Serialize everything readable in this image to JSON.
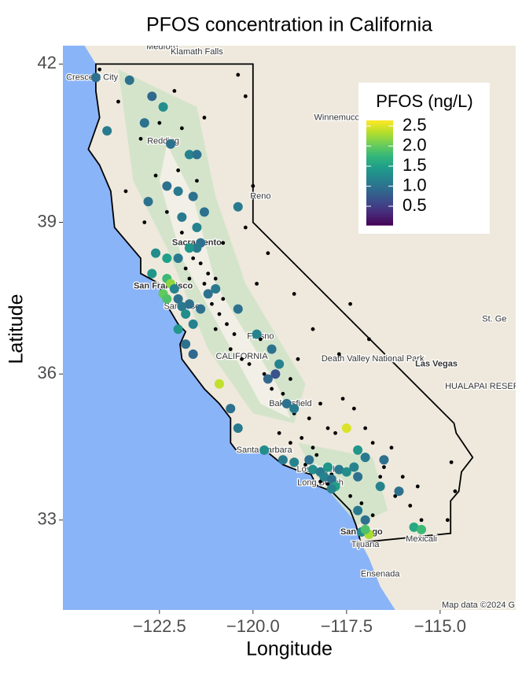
{
  "chart_data": {
    "type": "scatter_map",
    "title": "PFOS concentration in California",
    "x_label": "Longitude",
    "y_label": "Latitude",
    "projection": "mercator",
    "xlim": [
      -125.08,
      -112.98
    ],
    "ylim": [
      31.1,
      42.34
    ],
    "xticks": [
      {
        "value": -122.5,
        "label": "−122.5"
      },
      {
        "value": -120,
        "label": "−120.0"
      },
      {
        "value": -117.5,
        "label": "−117.5"
      },
      {
        "value": -115,
        "label": "−115.0"
      }
    ],
    "yticks": [
      33,
      36,
      39,
      42
    ],
    "colorbar": {
      "title": "PFOS (ng/L)",
      "colormap": "viridis",
      "clim": [
        0.03,
        2.64
      ],
      "ticks": [
        0.5,
        {
          "value": 1,
          "label": "1.0"
        },
        1.5,
        {
          "value": 2,
          "label": "2.0"
        },
        2.5
      ]
    },
    "points": {
      "x": [
        -124.2,
        -123.9,
        -123.3,
        -122.7,
        -122.4,
        -122.2,
        -121.7,
        -121.5,
        -122.8,
        -122.3,
        -122.0,
        -121.9,
        -121.6,
        -121.3,
        -121.5,
        -121.4,
        -121.5,
        -121.7,
        -122.0,
        -122.3,
        -122.6,
        -122.7,
        -122.3,
        -122.2,
        -122.4,
        -122.3,
        -122.1,
        -122.0,
        -121.9,
        -121.7,
        -121.8,
        -121.6,
        -121.4,
        -121.2,
        -121.0,
        -122.0,
        -121.8,
        -121.6,
        -120.4,
        -119.9,
        -119.5,
        -119.3,
        -119.6,
        -119.1,
        -118.9,
        -120.6,
        -120.4,
        -119.7,
        -119.2,
        -118.9,
        -118.5,
        -118.4,
        -118.2,
        -118.1,
        -117.9,
        -118.0,
        -117.7,
        -117.5,
        -117.3,
        -117.2,
        -117.8,
        -117.9,
        -117.2,
        -117.0,
        -116.6,
        -117.5,
        -116.5,
        -117.2,
        -117.0,
        -117.1,
        -116.9,
        -117.0,
        -115.7,
        -115.5,
        -116.1,
        -120.9,
        -122.9,
        -120.4,
        -119.4
      ],
      "y": [
        41.75,
        40.75,
        41.7,
        41.4,
        41.2,
        40.5,
        40.3,
        40.3,
        39.4,
        39.7,
        39.6,
        39.1,
        39.5,
        39.2,
        38.9,
        38.6,
        38.5,
        38.5,
        38.3,
        38.3,
        38.4,
        38.0,
        37.9,
        37.8,
        37.6,
        37.5,
        37.7,
        37.5,
        37.35,
        37.4,
        37.2,
        37.0,
        37.3,
        37.6,
        37.7,
        36.9,
        36.6,
        36.4,
        37.3,
        36.8,
        36.5,
        36.2,
        35.9,
        35.4,
        35.3,
        35.3,
        34.9,
        34.45,
        34.25,
        34.2,
        34.25,
        34.05,
        34.0,
        33.9,
        33.85,
        34.1,
        34.05,
        34.0,
        34.1,
        33.9,
        33.7,
        33.65,
        34.45,
        34.3,
        33.7,
        34.9,
        34.25,
        33.2,
        33.0,
        32.75,
        32.7,
        32.8,
        32.85,
        32.8,
        33.6,
        35.8,
        40.9,
        39.3,
        36.0
      ],
      "values": [
        1.0,
        1.1,
        1.0,
        0.9,
        1.3,
        1.0,
        1.2,
        1.0,
        1.0,
        1.0,
        1.1,
        1.1,
        1.0,
        1.0,
        1.2,
        1.0,
        1.1,
        1.4,
        1.1,
        1.5,
        1.3,
        1.4,
        1.8,
        2.2,
        2.0,
        1.9,
        1.2,
        1.0,
        1.1,
        1.0,
        1.3,
        1.2,
        1.0,
        1.0,
        1.1,
        1.4,
        1.0,
        0.9,
        1.0,
        1.2,
        1.0,
        1.2,
        0.9,
        1.0,
        1.1,
        1.0,
        1.1,
        1.3,
        1.1,
        1.2,
        1.0,
        1.3,
        1.1,
        1.2,
        1.0,
        1.4,
        1.1,
        1.3,
        1.2,
        1.0,
        1.5,
        1.2,
        1.4,
        1.1,
        1.2,
        2.5,
        1.0,
        1.1,
        1.0,
        1.3,
        2.3,
        1.9,
        1.6,
        1.8,
        1.0,
        2.4,
        1.0,
        1.1,
        0.7
      ]
    },
    "nondetect": {
      "x": [
        -124.1,
        -123.6,
        -123.0,
        -122.5,
        -122.1,
        -121.9,
        -121.3,
        -120.4,
        -120.2,
        -122.6,
        -122.3,
        -121.9,
        -121.6,
        -121.4,
        -121.2,
        -121.0,
        -120.8,
        -121.8,
        -121.7,
        -121.3,
        -121.1,
        -120.9,
        -120.7,
        -120.5,
        -121.0,
        -120.6,
        -120.3,
        -120.1,
        -119.8,
        -119.7,
        -119.5,
        -119.2,
        -119.0,
        -118.8,
        -118.9,
        -119.3,
        -119.0,
        -118.7,
        -118.5,
        -118.2,
        -118.0,
        -118.4,
        -117.8,
        -117.6,
        -117.3,
        -117.0,
        -116.8,
        -116.5,
        -116.3,
        -116.0,
        -115.8,
        -115.5,
        -114.7,
        -114.6,
        -114.8,
        -117.9,
        -118.2,
        -118.6,
        -118.3,
        -118.0,
        -117.4,
        -117.1,
        -116.8,
        -116.6,
        -116.2,
        -115.6,
        -122.9,
        -123.4,
        -122.0,
        -121.5,
        -120.8,
        -120.2,
        -119.9,
        -119.6,
        -118.9,
        -118.4,
        -117.7,
        -117.4,
        -116.9,
        -120.0
      ],
      "y": [
        41.9,
        41.3,
        40.6,
        40.9,
        41.5,
        40.8,
        41.0,
        41.8,
        41.4,
        39.9,
        39.2,
        38.8,
        38.3,
        38.2,
        38.0,
        37.9,
        37.5,
        38.1,
        37.9,
        37.8,
        37.4,
        37.2,
        37.0,
        36.8,
        36.9,
        36.5,
        36.3,
        36.2,
        36.7,
        36.0,
        35.7,
        35.6,
        35.9,
        36.3,
        35.2,
        34.8,
        34.6,
        34.7,
        35.1,
        35.4,
        34.9,
        34.5,
        34.8,
        35.5,
        35.3,
        34.9,
        34.6,
        34.1,
        34.5,
        33.9,
        33.3,
        33.0,
        34.2,
        33.6,
        33.0,
        33.95,
        33.8,
        34.15,
        34.35,
        33.75,
        33.5,
        33.35,
        33.1,
        33.9,
        33.5,
        33.7,
        39.0,
        39.6,
        40.0,
        39.8,
        38.6,
        38.9,
        37.8,
        38.4,
        37.6,
        36.9,
        36.4,
        37.4,
        36.7,
        39.7
      ]
    },
    "map_labels": [
      "Medford",
      "Klamath Falls",
      "Crescent City",
      "Redding",
      "Winnemucca",
      "Reno",
      "Sacramento",
      "San Francisco",
      "San Jose",
      "Fresno",
      "CALIFORNIA",
      "Death Valley National Park",
      "Las Vegas",
      "HUALAPAI RESERV",
      "St. Ge",
      "Bakersfield",
      "Santa Barbara",
      "Los Angeles",
      "Long Beach",
      "San Diego",
      "Tijuana",
      "Mexicali",
      "Ensenada",
      "Map data ©2024 G"
    ]
  }
}
